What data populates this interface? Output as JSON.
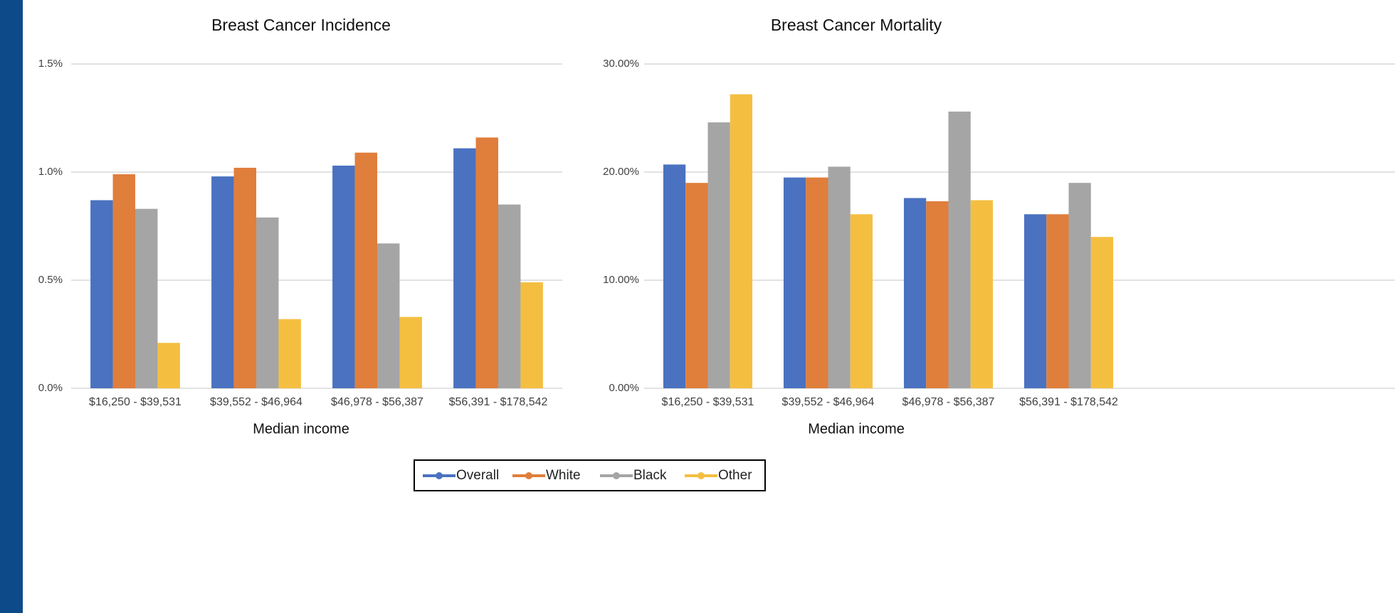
{
  "chart_data": [
    {
      "type": "bar",
      "title": "Breast Cancer Incidence",
      "x_label": "Median income",
      "categories": [
        "$16,250 - $39,531",
        "$39,552 - $46,964",
        "$46,978 - $56,387",
        "$56,391 - $178,542"
      ],
      "series": [
        {
          "name": "Overall",
          "color": "#4a72c0",
          "values": [
            0.87,
            0.98,
            1.03,
            1.11
          ]
        },
        {
          "name": "White",
          "color": "#e07e3c",
          "values": [
            0.99,
            1.02,
            1.09,
            1.16
          ]
        },
        {
          "name": "Black",
          "color": "#a5a5a5",
          "values": [
            0.83,
            0.79,
            0.67,
            0.85
          ]
        },
        {
          "name": "Other",
          "color": "#f4bf41",
          "values": [
            0.21,
            0.32,
            0.33,
            0.49
          ]
        }
      ],
      "ylim": [
        0,
        1.5
      ],
      "yticks": [
        {
          "value": 0,
          "label": "0.0%"
        },
        {
          "value": 0.5,
          "label": "0.5%"
        },
        {
          "value": 1,
          "label": "1.0%"
        },
        {
          "value": 1.5,
          "label": "1.5%"
        }
      ],
      "grid": true
    },
    {
      "type": "bar",
      "title": "Breast Cancer Mortality",
      "x_label": "Median income",
      "categories": [
        "$16,250 - $39,531",
        "$39,552 - $46,964",
        "$46,978 - $56,387",
        "$56,391 - $178,542"
      ],
      "series": [
        {
          "color": "#4a72c0",
          "values": [
            20.7,
            19.5,
            17.6,
            16.1
          ]
        },
        {
          "color": "#e07e3c",
          "values": [
            19.0,
            19.5,
            17.3,
            16.1
          ]
        },
        {
          "color": "#a5a5a5",
          "values": [
            24.6,
            20.5,
            25.6,
            19.0
          ]
        },
        {
          "color": "#f4bf41",
          "values": [
            27.2,
            16.1,
            17.4,
            14.0
          ]
        }
      ],
      "ylim": [
        0,
        30
      ],
      "yticks": [
        {
          "value": 0,
          "label": "0.00%"
        },
        {
          "value": 10,
          "label": "10.00%"
        },
        {
          "value": 20,
          "label": "20.00%"
        },
        {
          "value": 30,
          "label": "30.00%"
        }
      ],
      "grid": true
    }
  ]
}
